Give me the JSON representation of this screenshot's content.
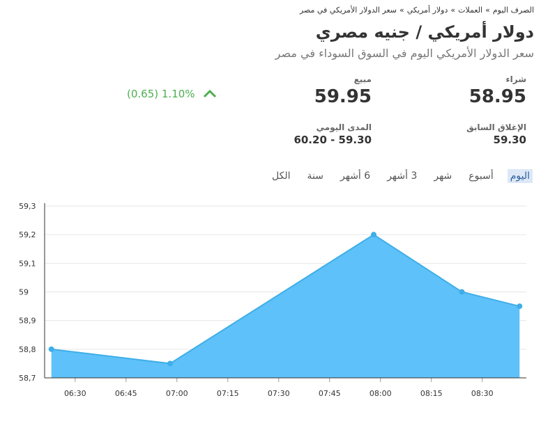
{
  "breadcrumb": [
    "الصرف اليوم",
    "العملات",
    "دولار أمريكي",
    "سعر الدولار الأمريكي في مصر"
  ],
  "title": "دولار أمريكي / جنيه مصري",
  "subtitle": "سعر الدولار الأمريكي اليوم في السوق السوداء في مصر",
  "quote": {
    "buy_label": "شراء",
    "buy": "58.95",
    "sell_label": "مبيع",
    "sell": "59.95",
    "change": "(0.65)",
    "change_pct": "1.10%",
    "prev_close_label": "الإغلاق السابق",
    "prev_close": "59.30",
    "range_label": "المدى اليومي",
    "range": "60.20 - 59.30"
  },
  "tabs": [
    "اليوم",
    "أسبوع",
    "شهر",
    "3 أشهر",
    "6 أشهر",
    "سنة",
    "الكل"
  ],
  "chart_data": {
    "type": "area",
    "x": [
      383,
      418,
      478,
      504,
      521
    ],
    "values": [
      58.8,
      58.75,
      59.2,
      59.0,
      58.95
    ],
    "color": "#5fc1f9",
    "line_color": "#3eaee8",
    "xlim": [
      381,
      523
    ],
    "xticks": [
      {
        "value": 390,
        "label": "06:30"
      },
      {
        "value": 405,
        "label": "06:45"
      },
      {
        "value": 420,
        "label": "07:00"
      },
      {
        "value": 435,
        "label": "07:15"
      },
      {
        "value": 450,
        "label": "07:30"
      },
      {
        "value": 465,
        "label": "07:45"
      },
      {
        "value": 480,
        "label": "08:00"
      },
      {
        "value": 495,
        "label": "08:15"
      },
      {
        "value": 510,
        "label": "08:30"
      }
    ],
    "ylim": [
      58.7,
      59.3
    ],
    "yticks": [
      {
        "value": 58.7,
        "label": "58,7"
      },
      {
        "value": 58.8,
        "label": "58,8"
      },
      {
        "value": 58.9,
        "label": "58,9"
      },
      59,
      {
        "value": 59.1,
        "label": "59,1"
      },
      {
        "value": 59.2,
        "label": "59,2"
      },
      {
        "value": 59.3,
        "label": "59,3"
      }
    ],
    "grid": true
  }
}
